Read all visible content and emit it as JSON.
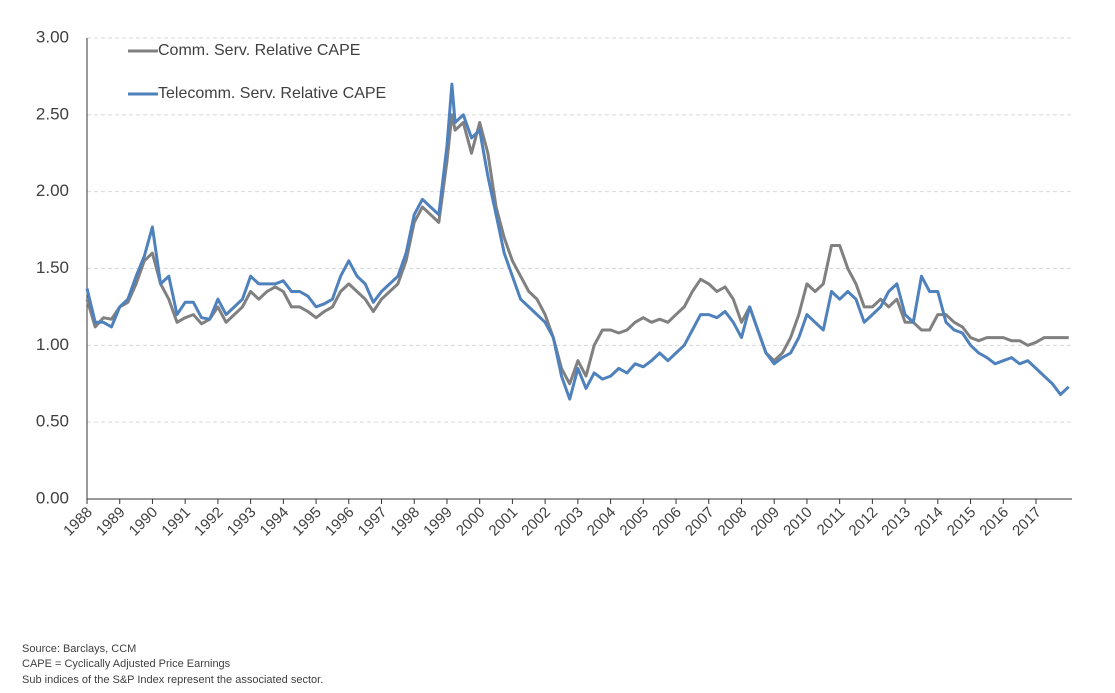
{
  "chart_data": {
    "type": "line",
    "x": [
      1988.0,
      1988.25,
      1988.5,
      1988.75,
      1989.0,
      1989.25,
      1989.5,
      1989.75,
      1990.0,
      1990.25,
      1990.5,
      1990.75,
      1991.0,
      1991.25,
      1991.5,
      1991.75,
      1992.0,
      1992.25,
      1992.5,
      1992.75,
      1993.0,
      1993.25,
      1993.5,
      1993.75,
      1994.0,
      1994.25,
      1994.5,
      1994.75,
      1995.0,
      1995.25,
      1995.5,
      1995.75,
      1996.0,
      1996.25,
      1996.5,
      1996.75,
      1997.0,
      1997.25,
      1997.5,
      1997.75,
      1998.0,
      1998.25,
      1998.5,
      1998.75,
      1999.0,
      1999.15,
      1999.25,
      1999.5,
      1999.75,
      2000.0,
      2000.25,
      2000.5,
      2000.75,
      2001.0,
      2001.25,
      2001.5,
      2001.75,
      2002.0,
      2002.25,
      2002.5,
      2002.75,
      2003.0,
      2003.25,
      2003.5,
      2003.75,
      2004.0,
      2004.25,
      2004.5,
      2004.75,
      2005.0,
      2005.25,
      2005.5,
      2005.75,
      2006.0,
      2006.25,
      2006.5,
      2006.75,
      2007.0,
      2007.25,
      2007.5,
      2007.75,
      2008.0,
      2008.25,
      2008.5,
      2008.75,
      2009.0,
      2009.25,
      2009.5,
      2009.75,
      2010.0,
      2010.25,
      2010.5,
      2010.75,
      2011.0,
      2011.25,
      2011.5,
      2011.75,
      2012.0,
      2012.25,
      2012.5,
      2012.75,
      2013.0,
      2013.25,
      2013.5,
      2013.75,
      2014.0,
      2014.25,
      2014.5,
      2014.75,
      2015.0,
      2015.25,
      2015.5,
      2015.75,
      2016.0,
      2016.25,
      2016.5,
      2016.75,
      2017.0,
      2017.25,
      2017.5,
      2017.75,
      2018.0
    ],
    "series": [
      {
        "name": "Comm. Serv. Relative CAPE",
        "color": "#808080",
        "values": [
          1.3,
          1.12,
          1.18,
          1.17,
          1.25,
          1.28,
          1.4,
          1.55,
          1.6,
          1.4,
          1.3,
          1.15,
          1.18,
          1.2,
          1.14,
          1.17,
          1.25,
          1.15,
          1.2,
          1.25,
          1.35,
          1.3,
          1.35,
          1.38,
          1.35,
          1.25,
          1.25,
          1.22,
          1.18,
          1.22,
          1.25,
          1.35,
          1.4,
          1.35,
          1.3,
          1.22,
          1.3,
          1.35,
          1.4,
          1.55,
          1.8,
          1.9,
          1.85,
          1.8,
          2.2,
          2.5,
          2.4,
          2.45,
          2.25,
          2.45,
          2.25,
          1.9,
          1.7,
          1.55,
          1.45,
          1.35,
          1.3,
          1.2,
          1.05,
          0.85,
          0.75,
          0.9,
          0.8,
          1.0,
          1.1,
          1.1,
          1.08,
          1.1,
          1.15,
          1.18,
          1.15,
          1.17,
          1.15,
          1.2,
          1.25,
          1.35,
          1.43,
          1.4,
          1.35,
          1.38,
          1.3,
          1.15,
          1.25,
          1.1,
          0.95,
          0.9,
          0.95,
          1.05,
          1.2,
          1.4,
          1.35,
          1.4,
          1.65,
          1.65,
          1.5,
          1.4,
          1.25,
          1.25,
          1.3,
          1.25,
          1.3,
          1.15,
          1.15,
          1.1,
          1.1,
          1.2,
          1.2,
          1.15,
          1.12,
          1.05,
          1.03,
          1.05,
          1.05,
          1.05,
          1.03,
          1.03,
          1.0,
          1.02,
          1.05,
          1.05,
          1.05,
          1.05
        ]
      },
      {
        "name": "Telecomm. Serv. Relative CAPE",
        "color": "#4f81bd",
        "values": [
          1.37,
          1.15,
          1.15,
          1.12,
          1.25,
          1.3,
          1.45,
          1.58,
          1.77,
          1.4,
          1.45,
          1.2,
          1.28,
          1.28,
          1.18,
          1.17,
          1.3,
          1.2,
          1.25,
          1.3,
          1.45,
          1.4,
          1.4,
          1.4,
          1.42,
          1.35,
          1.35,
          1.32,
          1.25,
          1.27,
          1.3,
          1.45,
          1.55,
          1.45,
          1.4,
          1.28,
          1.35,
          1.4,
          1.45,
          1.6,
          1.85,
          1.95,
          1.9,
          1.85,
          2.3,
          2.7,
          2.45,
          2.5,
          2.35,
          2.4,
          2.1,
          1.85,
          1.6,
          1.45,
          1.3,
          1.25,
          1.2,
          1.15,
          1.05,
          0.8,
          0.65,
          0.85,
          0.72,
          0.82,
          0.78,
          0.8,
          0.85,
          0.82,
          0.88,
          0.86,
          0.9,
          0.95,
          0.9,
          0.95,
          1.0,
          1.1,
          1.2,
          1.2,
          1.18,
          1.22,
          1.15,
          1.05,
          1.25,
          1.1,
          0.95,
          0.88,
          0.92,
          0.95,
          1.05,
          1.2,
          1.15,
          1.1,
          1.35,
          1.3,
          1.35,
          1.3,
          1.15,
          1.2,
          1.25,
          1.35,
          1.4,
          1.2,
          1.15,
          1.45,
          1.35,
          1.35,
          1.15,
          1.1,
          1.08,
          1.0,
          0.95,
          0.92,
          0.88,
          0.9,
          0.92,
          0.88,
          0.9,
          0.85,
          0.8,
          0.75,
          0.68,
          0.73
        ]
      }
    ],
    "xlim": [
      1988,
      2018.1
    ],
    "xticks": [
      1988,
      1989,
      1990,
      1991,
      1992,
      1993,
      1994,
      1995,
      1996,
      1997,
      1998,
      1999,
      2000,
      2001,
      2002,
      2003,
      2004,
      2005,
      2006,
      2007,
      2008,
      2009,
      2010,
      2011,
      2012,
      2013,
      2014,
      2015,
      2016,
      2017
    ],
    "ylim": [
      0,
      3
    ],
    "yticks": [
      {
        "value": 0,
        "label": "0.00"
      },
      {
        "value": 0.5,
        "label": "0.50"
      },
      {
        "value": 1,
        "label": "1.00"
      },
      {
        "value": 1.5,
        "label": "1.50"
      },
      {
        "value": 2,
        "label": "2.00"
      },
      {
        "value": 2.5,
        "label": "2.50"
      },
      {
        "value": 3,
        "label": "3.00"
      }
    ],
    "grid": true,
    "legend": "top-left",
    "notes": [
      "Source: Barclays, CCM",
      "CAPE = Cyclically Adjusted Price Earnings",
      "Sub indices of the S&P Index represent the associated sector."
    ]
  }
}
